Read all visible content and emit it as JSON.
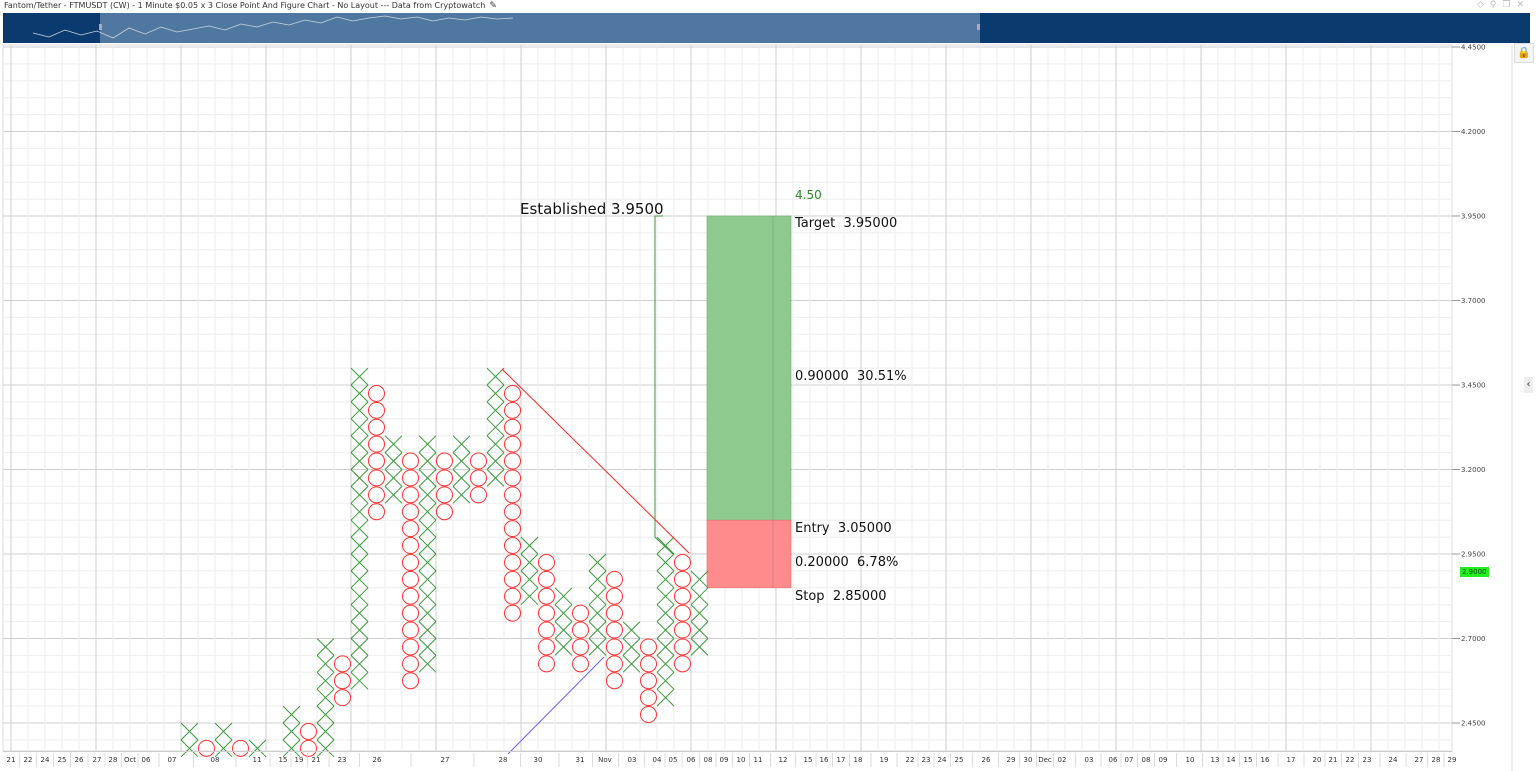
{
  "header": {
    "title": "Fantom/Tether - FTMUSDT (CW) - 1 Minute $0.05 x 3 Close Point And Figure Chart - No Layout --- Data from Cryptowatch",
    "window_icons": [
      "diamond-icon",
      "pin-icon",
      "restore-icon",
      "close-icon"
    ]
  },
  "colors": {
    "x_mark": "#3a9a3a",
    "o_mark": "#ff3333",
    "navigator_bg": "#0b3a6e",
    "navigator_selection": "#4f77a0",
    "target_zone": "#8ec98e",
    "stop_zone": "#ff8c8c",
    "resistance_line": "#ff2222",
    "support_line": "#6666ff",
    "last_price_bg": "#22ee22"
  },
  "yaxis": {
    "ticks": [
      "4.4500",
      "4.2000",
      "3.9500",
      "3.7000",
      "3.4500",
      "3.2000",
      "2.9500",
      "2.7000",
      "2.4500"
    ],
    "last_price": "2.9000"
  },
  "xaxis": {
    "labels": [
      "21",
      "22",
      "24",
      "25",
      "26",
      "27",
      "28",
      "Oct",
      "06",
      "07",
      "08",
      "11",
      "15",
      "19",
      "21",
      "23",
      "26",
      "27",
      "28",
      "30",
      "31",
      "Nov",
      "03",
      "04",
      "05",
      "06",
      "08",
      "09",
      "10",
      "11",
      "12",
      "15",
      "16",
      "17",
      "18",
      "19",
      "22",
      "23",
      "24",
      "25",
      "26",
      "29",
      "30",
      "Dec",
      "02",
      "03",
      "06",
      "07",
      "08",
      "09",
      "10",
      "13",
      "14",
      "15",
      "16",
      "17",
      "20",
      "21",
      "22",
      "23",
      "24",
      "27",
      "28",
      "29"
    ]
  },
  "annotations": {
    "established": "Established 3.9500",
    "target_count": "4.50",
    "target": "Target  3.95000",
    "reward": "0.90000  30.51%",
    "entry": "Entry  3.05000",
    "risk": "0.20000  6.78%",
    "stop": "Stop  2.85000"
  },
  "chart_data": {
    "type": "point-and-figure",
    "box_size": 0.05,
    "reversal": 3,
    "ylim": [
      2.4,
      4.5
    ],
    "grid": true,
    "columns": [
      {
        "col": 0,
        "type": "X",
        "low": 2.3,
        "high": 2.4
      },
      {
        "col": 1,
        "type": "O",
        "low": 2.3,
        "high": 2.35
      },
      {
        "col": 2,
        "type": "X",
        "low": 2.3,
        "high": 2.4
      },
      {
        "col": 3,
        "type": "O",
        "low": 2.3,
        "high": 2.35
      },
      {
        "col": 4,
        "type": "X",
        "low": 2.3,
        "high": 2.35
      },
      {
        "col": 6,
        "type": "X",
        "low": 2.3,
        "high": 2.45
      },
      {
        "col": 7,
        "type": "O",
        "low": 2.3,
        "high": 2.4
      },
      {
        "col": 8,
        "type": "X",
        "low": 2.3,
        "high": 2.65
      },
      {
        "col": 9,
        "type": "O",
        "low": 2.5,
        "high": 2.6
      },
      {
        "col": 10,
        "type": "X",
        "low": 2.55,
        "high": 3.45
      },
      {
        "col": 11,
        "type": "O",
        "low": 3.05,
        "high": 3.4
      },
      {
        "col": 12,
        "type": "X",
        "low": 3.1,
        "high": 3.25
      },
      {
        "col": 13,
        "type": "O",
        "low": 2.55,
        "high": 3.2
      },
      {
        "col": 14,
        "type": "X",
        "low": 2.6,
        "high": 3.25
      },
      {
        "col": 15,
        "type": "O",
        "low": 3.05,
        "high": 3.2
      },
      {
        "col": 16,
        "type": "X",
        "low": 3.1,
        "high": 3.25
      },
      {
        "col": 17,
        "type": "O",
        "low": 3.1,
        "high": 3.2
      },
      {
        "col": 18,
        "type": "X",
        "low": 3.15,
        "high": 3.45
      },
      {
        "col": 19,
        "type": "O",
        "low": 2.75,
        "high": 3.4
      },
      {
        "col": 20,
        "type": "X",
        "low": 2.8,
        "high": 2.95
      },
      {
        "col": 21,
        "type": "O",
        "low": 2.6,
        "high": 2.9
      },
      {
        "col": 22,
        "type": "X",
        "low": 2.65,
        "high": 2.8
      },
      {
        "col": 23,
        "type": "O",
        "low": 2.6,
        "high": 2.75
      },
      {
        "col": 24,
        "type": "X",
        "low": 2.65,
        "high": 2.9
      },
      {
        "col": 25,
        "type": "O",
        "low": 2.55,
        "high": 2.85
      },
      {
        "col": 26,
        "type": "X",
        "low": 2.6,
        "high": 2.7
      },
      {
        "col": 27,
        "type": "O",
        "low": 2.45,
        "high": 2.65
      },
      {
        "col": 28,
        "type": "X",
        "low": 2.5,
        "high": 2.95
      },
      {
        "col": 29,
        "type": "O",
        "low": 2.6,
        "high": 2.9
      },
      {
        "col": 30,
        "type": "X",
        "low": 2.65,
        "high": 2.85
      }
    ],
    "position": {
      "entry": 3.05,
      "target": 3.95,
      "stop": 2.85
    },
    "price_target_line": {
      "from": 3.0,
      "to": 3.95
    }
  }
}
